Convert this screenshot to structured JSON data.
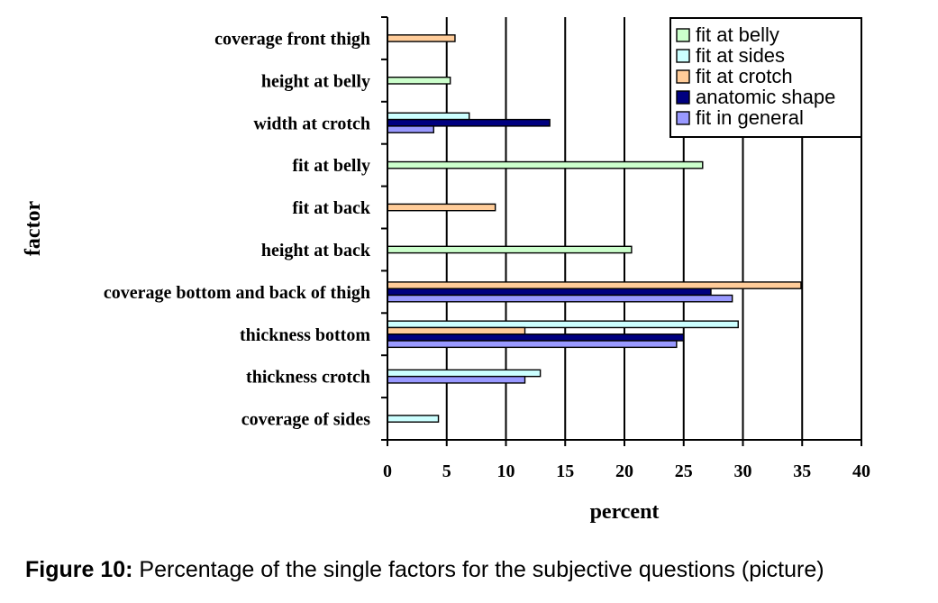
{
  "chart_data": {
    "type": "bar",
    "orientation": "horizontal",
    "xlabel": "percent",
    "ylabel": "factor",
    "xlim": [
      0,
      40
    ],
    "x_ticks": [
      0,
      5,
      10,
      15,
      20,
      25,
      30,
      35,
      40
    ],
    "grid": "vertical",
    "legend_position": "top-right",
    "categories": [
      "coverage front thigh",
      "height at belly",
      "width at crotch",
      "fit at belly",
      "fit at back",
      "height at back",
      "coverage bottom and back of thigh",
      "thickness bottom",
      "thickness crotch",
      "coverage of sides"
    ],
    "series": [
      {
        "name": "fit at belly",
        "color": "#ccffcc",
        "values": [
          null,
          5.3,
          null,
          26.6,
          null,
          20.6,
          null,
          null,
          null,
          null
        ]
      },
      {
        "name": "fit at sides",
        "color": "#ccffff",
        "values": [
          null,
          null,
          6.9,
          null,
          null,
          null,
          null,
          29.6,
          12.9,
          4.3
        ]
      },
      {
        "name": "fit at crotch",
        "color": "#ffcc99",
        "values": [
          5.7,
          null,
          null,
          null,
          9.1,
          null,
          34.9,
          11.6,
          null,
          null
        ]
      },
      {
        "name": "anatomic shape",
        "color": "#000080",
        "values": [
          null,
          null,
          13.7,
          null,
          null,
          null,
          27.3,
          25.0,
          null,
          null
        ]
      },
      {
        "name": "fit in general",
        "color": "#9999ff",
        "values": [
          null,
          null,
          3.9,
          null,
          null,
          null,
          29.1,
          24.4,
          11.6,
          null
        ]
      }
    ]
  },
  "caption": {
    "label": "Figure 10:",
    "text": " Percentage of the single factors for the subjective questions (picture)"
  }
}
